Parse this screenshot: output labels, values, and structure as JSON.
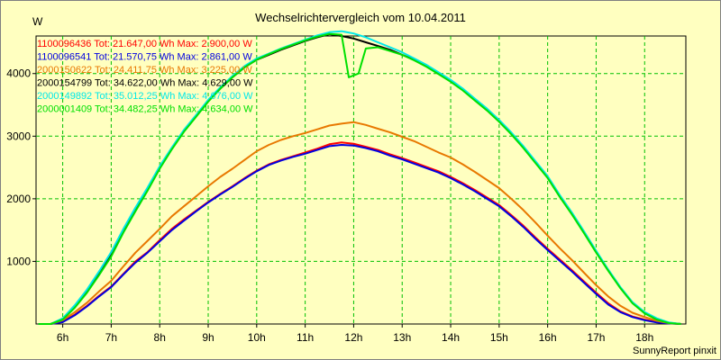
{
  "chart_data": {
    "type": "line",
    "title": "Wechselrichtervergleich vom 10.04.2011",
    "ylabel": "W",
    "xlabel": "",
    "xlim": [
      5.45,
      18.85
    ],
    "ylim": [
      0,
      4600
    ],
    "x_ticks": [
      6,
      7,
      8,
      9,
      10,
      11,
      12,
      13,
      14,
      15,
      16,
      17,
      18
    ],
    "x_tick_labels": [
      "6h",
      "7h",
      "8h",
      "9h",
      "10h",
      "11h",
      "12h",
      "13h",
      "14h",
      "15h",
      "16h",
      "17h",
      "18h"
    ],
    "y_ticks": [
      1000,
      2000,
      3000,
      4000
    ],
    "y_tick_labels": [
      "1000",
      "2000",
      "3000",
      "4000"
    ],
    "grid": true,
    "footer": "SunnyReport pinxit",
    "series": [
      {
        "name": "1100096436",
        "legend": "1100096436  Tot: 21.647,00 Wh Max: 2.900,00 W",
        "color": "#ff0000",
        "x": [
          5.5,
          5.75,
          6.0,
          6.25,
          6.5,
          6.75,
          7.0,
          7.25,
          7.5,
          7.75,
          8.0,
          8.25,
          8.5,
          8.75,
          9.0,
          9.25,
          9.5,
          9.75,
          10.0,
          10.25,
          10.5,
          10.75,
          11.0,
          11.25,
          11.5,
          11.75,
          12.0,
          12.25,
          12.5,
          12.75,
          13.0,
          13.25,
          13.5,
          13.75,
          14.0,
          14.25,
          14.5,
          14.75,
          15.0,
          15.25,
          15.5,
          15.75,
          16.0,
          16.25,
          16.5,
          16.75,
          17.0,
          17.25,
          17.5,
          17.75,
          18.0,
          18.25,
          18.5,
          18.75
        ],
        "values": [
          0,
          0,
          40,
          150,
          290,
          450,
          600,
          800,
          1000,
          1150,
          1340,
          1520,
          1670,
          1810,
          1950,
          2080,
          2200,
          2330,
          2450,
          2550,
          2620,
          2680,
          2740,
          2800,
          2870,
          2900,
          2880,
          2830,
          2780,
          2710,
          2650,
          2580,
          2510,
          2440,
          2350,
          2250,
          2140,
          2020,
          1900,
          1740,
          1570,
          1380,
          1200,
          1030,
          860,
          680,
          500,
          330,
          200,
          120,
          70,
          30,
          10,
          0
        ]
      },
      {
        "name": "1100096541",
        "legend": "1100096541  Tot: 21.570,75 Wh Max: 2.861,00 W",
        "color": "#0000e0",
        "x": [
          5.5,
          5.75,
          6.0,
          6.25,
          6.5,
          6.75,
          7.0,
          7.25,
          7.5,
          7.75,
          8.0,
          8.25,
          8.5,
          8.75,
          9.0,
          9.25,
          9.5,
          9.75,
          10.0,
          10.25,
          10.5,
          10.75,
          11.0,
          11.25,
          11.5,
          11.75,
          12.0,
          12.25,
          12.5,
          12.75,
          13.0,
          13.25,
          13.5,
          13.75,
          14.0,
          14.25,
          14.5,
          14.75,
          15.0,
          15.25,
          15.5,
          15.75,
          16.0,
          16.25,
          16.5,
          16.75,
          17.0,
          17.25,
          17.5,
          17.75,
          18.0,
          18.25,
          18.5,
          18.75
        ],
        "values": [
          0,
          0,
          30,
          140,
          280,
          440,
          590,
          790,
          980,
          1140,
          1320,
          1500,
          1650,
          1800,
          1940,
          2070,
          2190,
          2320,
          2440,
          2540,
          2610,
          2670,
          2720,
          2780,
          2840,
          2860,
          2850,
          2810,
          2760,
          2690,
          2630,
          2560,
          2490,
          2420,
          2330,
          2230,
          2120,
          2000,
          1880,
          1720,
          1550,
          1360,
          1180,
          1010,
          840,
          660,
          480,
          310,
          190,
          110,
          60,
          25,
          8,
          0
        ]
      },
      {
        "name": "2000150622",
        "legend": "2000150622  Tot: 24.411,75 Wh Max: 3.225,00 W",
        "color": "#e87800",
        "x": [
          5.5,
          5.75,
          6.0,
          6.25,
          6.5,
          6.75,
          7.0,
          7.25,
          7.5,
          7.75,
          8.0,
          8.25,
          8.5,
          8.75,
          9.0,
          9.25,
          9.5,
          9.75,
          10.0,
          10.25,
          10.5,
          10.75,
          11.0,
          11.25,
          11.5,
          11.75,
          12.0,
          12.25,
          12.5,
          12.75,
          13.0,
          13.25,
          13.5,
          13.75,
          14.0,
          14.25,
          14.5,
          14.75,
          15.0,
          15.25,
          15.5,
          15.75,
          16.0,
          16.25,
          16.5,
          16.75,
          17.0,
          17.25,
          17.5,
          17.75,
          18.0,
          18.25,
          18.5,
          18.75
        ],
        "values": [
          0,
          0,
          60,
          190,
          340,
          520,
          690,
          920,
          1140,
          1330,
          1520,
          1720,
          1880,
          2040,
          2200,
          2350,
          2480,
          2620,
          2760,
          2860,
          2940,
          3000,
          3050,
          3110,
          3170,
          3200,
          3225,
          3180,
          3120,
          3060,
          2990,
          2920,
          2830,
          2740,
          2660,
          2550,
          2430,
          2300,
          2170,
          2000,
          1820,
          1620,
          1410,
          1210,
          1020,
          820,
          620,
          440,
          290,
          180,
          110,
          50,
          15,
          0
        ]
      },
      {
        "name": "2000154799",
        "legend": "2000154799  Tot: 34.622,00 Wh Max: 4.629,00 W",
        "color": "#000000",
        "x": [
          5.5,
          5.75,
          6.0,
          6.25,
          6.5,
          6.75,
          7.0,
          7.25,
          7.5,
          7.75,
          8.0,
          8.25,
          8.5,
          8.75,
          9.0,
          9.25,
          9.5,
          9.75,
          10.0,
          10.25,
          10.5,
          10.75,
          11.0,
          11.25,
          11.5,
          11.75,
          12.0,
          12.25,
          12.5,
          12.75,
          13.0,
          13.25,
          13.5,
          13.75,
          14.0,
          14.25,
          14.5,
          14.75,
          15.0,
          15.25,
          15.5,
          15.75,
          16.0,
          16.25,
          16.5,
          16.75,
          17.0,
          17.25,
          17.5,
          17.75,
          18.0,
          18.25,
          18.5,
          18.75
        ],
        "values": [
          0,
          0,
          80,
          280,
          520,
          800,
          1100,
          1480,
          1820,
          2150,
          2500,
          2800,
          3080,
          3320,
          3560,
          3760,
          3940,
          4100,
          4220,
          4300,
          4380,
          4450,
          4520,
          4580,
          4629,
          4600,
          4560,
          4500,
          4440,
          4380,
          4300,
          4220,
          4120,
          4000,
          3880,
          3740,
          3580,
          3420,
          3240,
          3040,
          2820,
          2580,
          2340,
          2040,
          1760,
          1460,
          1150,
          860,
          580,
          340,
          180,
          80,
          20,
          0
        ]
      },
      {
        "name": "2000149892",
        "legend": "2000149892  Tot: 35.012,25 Wh Max: 4.676,00 W",
        "color": "#00e8e8",
        "x": [
          5.5,
          5.75,
          6.0,
          6.25,
          6.5,
          6.75,
          7.0,
          7.25,
          7.5,
          7.75,
          8.0,
          8.25,
          8.5,
          8.75,
          9.0,
          9.25,
          9.5,
          9.75,
          10.0,
          10.25,
          10.5,
          10.75,
          11.0,
          11.25,
          11.5,
          11.75,
          12.0,
          12.25,
          12.5,
          12.75,
          13.0,
          13.25,
          13.5,
          13.75,
          14.0,
          14.25,
          14.5,
          14.75,
          15.0,
          15.25,
          15.5,
          15.75,
          16.0,
          16.25,
          16.5,
          16.75,
          17.0,
          17.25,
          17.5,
          17.75,
          18.0,
          18.25,
          18.5,
          18.75
        ],
        "values": [
          0,
          0,
          90,
          300,
          550,
          840,
          1150,
          1520,
          1860,
          2180,
          2520,
          2820,
          3100,
          3340,
          3580,
          3780,
          3960,
          4120,
          4240,
          4320,
          4400,
          4470,
          4540,
          4610,
          4660,
          4676,
          4640,
          4580,
          4500,
          4420,
          4340,
          4240,
          4140,
          4020,
          3900,
          3760,
          3600,
          3440,
          3260,
          3060,
          2840,
          2600,
          2360,
          2060,
          1780,
          1480,
          1170,
          870,
          590,
          350,
          190,
          90,
          25,
          0
        ]
      },
      {
        "name": "2000001409",
        "legend": "2000001409  Tot: 34.482,25 Wh Max: 4.634,00 W",
        "color": "#00e000",
        "x": [
          5.5,
          5.75,
          6.0,
          6.25,
          6.5,
          6.75,
          7.0,
          7.25,
          7.5,
          7.75,
          8.0,
          8.25,
          8.5,
          8.75,
          9.0,
          9.25,
          9.5,
          9.75,
          10.0,
          10.25,
          10.5,
          10.75,
          11.0,
          11.25,
          11.5,
          11.75,
          11.9,
          12.1,
          12.25,
          12.5,
          12.75,
          13.0,
          13.25,
          13.5,
          13.75,
          14.0,
          14.25,
          14.5,
          14.75,
          15.0,
          15.25,
          15.5,
          15.75,
          16.0,
          16.25,
          16.5,
          16.75,
          17.0,
          17.25,
          17.5,
          17.75,
          18.0,
          18.25,
          18.5,
          18.75
        ],
        "values": [
          0,
          0,
          70,
          260,
          500,
          780,
          1080,
          1460,
          1800,
          2130,
          2480,
          2790,
          3070,
          3310,
          3550,
          3760,
          3940,
          4100,
          4220,
          4310,
          4390,
          4460,
          4530,
          4590,
          4634,
          4620,
          3940,
          4000,
          4400,
          4420,
          4360,
          4300,
          4210,
          4110,
          3990,
          3870,
          3730,
          3570,
          3410,
          3230,
          3030,
          2810,
          2570,
          2330,
          2030,
          1750,
          1450,
          1140,
          850,
          570,
          330,
          170,
          70,
          15,
          0
        ]
      }
    ]
  }
}
